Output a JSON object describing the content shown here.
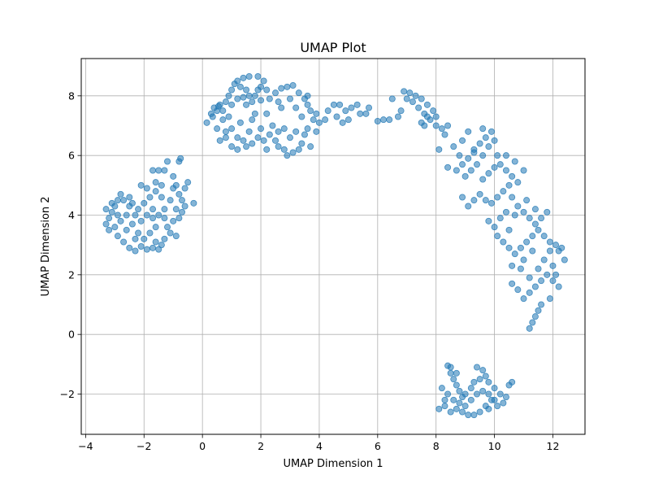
{
  "chart_data": {
    "type": "scatter",
    "title": "UMAP Plot",
    "xlabel": "UMAP Dimension 1",
    "ylabel": "UMAP Dimension 2",
    "xlim": [
      -4.15,
      13.1
    ],
    "ylim": [
      -3.35,
      9.25
    ],
    "xticks": [
      -4,
      -2,
      0,
      2,
      4,
      6,
      8,
      10,
      12
    ],
    "yticks": [
      -2,
      0,
      2,
      4,
      6,
      8
    ],
    "xtick_labels": [
      "−4",
      "−2",
      "0",
      "2",
      "4",
      "6",
      "8",
      "10",
      "12"
    ],
    "ytick_labels": [
      "−2",
      "0",
      "2",
      "4",
      "6",
      "8"
    ],
    "grid": true,
    "marker_color": "#1f77b4",
    "marker_alpha": 0.55,
    "points": [
      [
        -3.3,
        3.7
      ],
      [
        -3.2,
        3.9
      ],
      [
        -3.1,
        4.1
      ],
      [
        -3.0,
        4.3
      ],
      [
        -2.9,
        4.5
      ],
      [
        -2.8,
        4.7
      ],
      [
        -3.2,
        3.5
      ],
      [
        -3.0,
        3.6
      ],
      [
        -2.8,
        3.8
      ],
      [
        -2.6,
        4.0
      ],
      [
        -2.5,
        4.3
      ],
      [
        -2.7,
        4.5
      ],
      [
        -3.1,
        4.4
      ],
      [
        -2.9,
        3.3
      ],
      [
        -2.6,
        3.5
      ],
      [
        -2.4,
        3.7
      ],
      [
        -2.3,
        4.0
      ],
      [
        -2.5,
        4.6
      ],
      [
        -2.9,
        4.0
      ],
      [
        -3.3,
        4.2
      ],
      [
        -2.7,
        3.1
      ],
      [
        -2.5,
        2.9
      ],
      [
        -2.3,
        2.8
      ],
      [
        -2.1,
        2.95
      ],
      [
        -1.9,
        2.85
      ],
      [
        -1.7,
        2.9
      ],
      [
        -1.5,
        2.85
      ],
      [
        -1.4,
        3.0
      ],
      [
        -1.6,
        3.1
      ],
      [
        -1.3,
        3.2
      ],
      [
        -1.1,
        3.4
      ],
      [
        -0.9,
        3.3
      ],
      [
        -1.2,
        3.6
      ],
      [
        -1.0,
        3.8
      ],
      [
        -0.8,
        3.9
      ],
      [
        -0.7,
        4.1
      ],
      [
        -0.6,
        4.3
      ],
      [
        -0.7,
        4.5
      ],
      [
        -0.8,
        4.7
      ],
      [
        -0.6,
        4.9
      ],
      [
        -0.9,
        5.0
      ],
      [
        -0.5,
        5.1
      ],
      [
        -1.0,
        5.3
      ],
      [
        -1.3,
        5.5
      ],
      [
        -1.5,
        5.5
      ],
      [
        -1.7,
        5.5
      ],
      [
        -1.2,
        5.8
      ],
      [
        -0.8,
        5.8
      ],
      [
        -0.75,
        5.9
      ],
      [
        -1.4,
        5.0
      ],
      [
        -1.6,
        4.8
      ],
      [
        -1.8,
        4.6
      ],
      [
        -2.0,
        4.4
      ],
      [
        -1.7,
        4.2
      ],
      [
        -1.5,
        4.0
      ],
      [
        -1.3,
        3.9
      ],
      [
        -1.9,
        4.0
      ],
      [
        -2.1,
        3.8
      ],
      [
        -1.6,
        3.6
      ],
      [
        -1.8,
        3.4
      ],
      [
        -2.0,
        3.2
      ],
      [
        -2.2,
        3.4
      ],
      [
        -1.9,
        4.9
      ],
      [
        -2.1,
        5.0
      ],
      [
        -1.6,
        5.1
      ],
      [
        -1.1,
        4.5
      ],
      [
        -1.3,
        4.2
      ],
      [
        -0.9,
        4.2
      ],
      [
        -2.2,
        4.2
      ],
      [
        -2.4,
        4.4
      ],
      [
        -0.3,
        4.4
      ],
      [
        -1.0,
        4.9
      ],
      [
        -1.4,
        4.6
      ],
      [
        -1.7,
        3.9
      ],
      [
        -2.3,
        3.2
      ],
      [
        0.15,
        7.1
      ],
      [
        0.3,
        7.4
      ],
      [
        0.4,
        7.6
      ],
      [
        0.5,
        7.5
      ],
      [
        0.6,
        7.7
      ],
      [
        0.7,
        7.5
      ],
      [
        0.8,
        7.8
      ],
      [
        0.9,
        8.0
      ],
      [
        1.0,
        8.2
      ],
      [
        1.1,
        8.4
      ],
      [
        1.2,
        8.5
      ],
      [
        1.3,
        8.3
      ],
      [
        1.4,
        8.6
      ],
      [
        1.5,
        8.2
      ],
      [
        1.6,
        8.0
      ],
      [
        1.7,
        7.8
      ],
      [
        1.8,
        8.0
      ],
      [
        1.9,
        8.2
      ],
      [
        2.0,
        8.3
      ],
      [
        2.1,
        8.5
      ],
      [
        1.6,
        8.65
      ],
      [
        1.9,
        8.65
      ],
      [
        2.2,
        8.2
      ],
      [
        1.2,
        7.9
      ],
      [
        1.0,
        7.7
      ],
      [
        1.5,
        7.7
      ],
      [
        2.0,
        7.85
      ],
      [
        2.3,
        7.9
      ],
      [
        2.5,
        8.1
      ],
      [
        2.7,
        8.25
      ],
      [
        2.9,
        8.3
      ],
      [
        3.1,
        8.35
      ],
      [
        3.3,
        8.1
      ],
      [
        3.5,
        7.9
      ],
      [
        3.6,
        7.7
      ],
      [
        3.7,
        7.5
      ],
      [
        3.9,
        7.4
      ],
      [
        3.8,
        7.2
      ],
      [
        4.0,
        7.1
      ],
      [
        4.2,
        7.2
      ],
      [
        4.3,
        7.5
      ],
      [
        4.5,
        7.7
      ],
      [
        4.7,
        7.7
      ],
      [
        4.9,
        7.5
      ],
      [
        5.1,
        7.6
      ],
      [
        5.3,
        7.7
      ],
      [
        5.4,
        7.4
      ],
      [
        5.6,
        7.4
      ],
      [
        5.7,
        7.6
      ],
      [
        5.0,
        7.2
      ],
      [
        4.8,
        7.1
      ],
      [
        4.6,
        7.3
      ],
      [
        0.6,
        6.5
      ],
      [
        0.8,
        6.8
      ],
      [
        1.0,
        6.9
      ],
      [
        1.2,
        6.6
      ],
      [
        1.4,
        6.5
      ],
      [
        1.5,
        6.3
      ],
      [
        1.7,
        6.4
      ],
      [
        1.9,
        6.6
      ],
      [
        2.1,
        6.5
      ],
      [
        2.3,
        6.7
      ],
      [
        2.5,
        6.5
      ],
      [
        2.6,
        6.3
      ],
      [
        2.8,
        6.2
      ],
      [
        2.9,
        6.0
      ],
      [
        3.1,
        6.1
      ],
      [
        3.3,
        6.2
      ],
      [
        3.4,
        6.4
      ],
      [
        3.5,
        6.7
      ],
      [
        3.6,
        6.9
      ],
      [
        3.2,
        6.8
      ],
      [
        3.0,
        6.6
      ],
      [
        2.8,
        6.9
      ],
      [
        2.6,
        6.8
      ],
      [
        1.0,
        6.3
      ],
      [
        0.8,
        6.6
      ],
      [
        1.2,
        6.2
      ],
      [
        1.6,
        6.8
      ],
      [
        0.5,
        6.9
      ],
      [
        0.7,
        7.2
      ],
      [
        2.4,
        7.0
      ],
      [
        2.2,
        6.2
      ],
      [
        2.0,
        6.9
      ],
      [
        3.7,
        6.3
      ],
      [
        3.9,
        6.8
      ],
      [
        0.9,
        7.3
      ],
      [
        1.3,
        7.1
      ],
      [
        2.7,
        7.6
      ],
      [
        3.0,
        7.9
      ],
      [
        3.4,
        7.3
      ],
      [
        1.8,
        7.4
      ],
      [
        2.2,
        7.4
      ],
      [
        2.6,
        7.8
      ],
      [
        3.2,
        7.6
      ],
      [
        3.6,
        8.0
      ],
      [
        1.4,
        7.95
      ],
      [
        1.7,
        7.2
      ],
      [
        0.35,
        7.3
      ],
      [
        0.55,
        7.65
      ],
      [
        6.0,
        7.15
      ],
      [
        6.2,
        7.2
      ],
      [
        6.4,
        7.2
      ],
      [
        6.7,
        7.3
      ],
      [
        6.9,
        8.15
      ],
      [
        7.1,
        8.1
      ],
      [
        7.3,
        8.0
      ],
      [
        7.5,
        7.9
      ],
      [
        7.7,
        7.7
      ],
      [
        7.9,
        7.5
      ],
      [
        7.2,
        7.8
      ],
      [
        7.4,
        7.6
      ],
      [
        7.6,
        7.4
      ],
      [
        7.8,
        7.2
      ],
      [
        8.0,
        7.0
      ],
      [
        8.2,
        6.9
      ],
      [
        8.4,
        7.0
      ],
      [
        7.5,
        7.1
      ],
      [
        7.7,
        7.3
      ],
      [
        6.8,
        7.5
      ],
      [
        6.5,
        7.9
      ],
      [
        7.0,
        7.9
      ],
      [
        7.6,
        7.0
      ],
      [
        8.0,
        7.3
      ],
      [
        8.3,
        6.7
      ],
      [
        8.1,
        6.2
      ],
      [
        8.4,
        5.6
      ],
      [
        8.7,
        5.5
      ],
      [
        8.9,
        5.7
      ],
      [
        9.1,
        5.9
      ],
      [
        9.3,
        6.1
      ],
      [
        9.5,
        6.4
      ],
      [
        9.7,
        6.6
      ],
      [
        9.9,
        6.8
      ],
      [
        10.0,
        6.5
      ],
      [
        9.8,
        6.3
      ],
      [
        9.6,
        6.0
      ],
      [
        9.4,
        5.7
      ],
      [
        9.2,
        5.5
      ],
      [
        9.0,
        5.3
      ],
      [
        8.8,
        6.0
      ],
      [
        8.6,
        6.3
      ],
      [
        8.9,
        6.5
      ],
      [
        9.1,
        6.8
      ],
      [
        9.3,
        6.2
      ],
      [
        9.6,
        6.9
      ],
      [
        10.1,
        6.0
      ],
      [
        10.2,
        5.7
      ],
      [
        10.4,
        5.5
      ],
      [
        10.6,
        5.3
      ],
      [
        10.8,
        5.1
      ],
      [
        10.5,
        5.0
      ],
      [
        10.3,
        4.8
      ],
      [
        10.1,
        4.6
      ],
      [
        9.9,
        4.4
      ],
      [
        9.7,
        4.5
      ],
      [
        9.5,
        4.7
      ],
      [
        9.3,
        4.5
      ],
      [
        9.1,
        4.3
      ],
      [
        8.9,
        4.6
      ],
      [
        9.6,
        5.2
      ],
      [
        9.8,
        5.4
      ],
      [
        10.0,
        5.6
      ],
      [
        10.7,
        5.8
      ],
      [
        11.0,
        5.5
      ],
      [
        10.4,
        6.0
      ],
      [
        10.6,
        4.6
      ],
      [
        10.8,
        4.3
      ],
      [
        11.0,
        4.1
      ],
      [
        11.2,
        3.9
      ],
      [
        11.4,
        3.7
      ],
      [
        11.6,
        3.9
      ],
      [
        11.8,
        4.1
      ],
      [
        11.5,
        3.5
      ],
      [
        11.3,
        3.3
      ],
      [
        11.1,
        3.1
      ],
      [
        10.9,
        2.9
      ],
      [
        10.7,
        2.7
      ],
      [
        10.5,
        2.9
      ],
      [
        10.3,
        3.1
      ],
      [
        10.1,
        3.3
      ],
      [
        10.0,
        3.6
      ],
      [
        10.2,
        3.9
      ],
      [
        10.4,
        4.1
      ],
      [
        11.7,
        3.3
      ],
      [
        11.9,
        3.1
      ],
      [
        12.1,
        3.0
      ],
      [
        12.2,
        2.8
      ],
      [
        12.4,
        2.5
      ],
      [
        12.0,
        2.3
      ],
      [
        11.8,
        2.0
      ],
      [
        11.6,
        1.8
      ],
      [
        11.4,
        1.6
      ],
      [
        11.2,
        1.4
      ],
      [
        11.0,
        1.2
      ],
      [
        10.8,
        1.5
      ],
      [
        10.6,
        1.7
      ],
      [
        11.2,
        1.9
      ],
      [
        11.5,
        2.2
      ],
      [
        11.7,
        2.5
      ],
      [
        12.0,
        1.8
      ],
      [
        12.2,
        1.6
      ],
      [
        11.9,
        1.2
      ],
      [
        11.6,
        1.0
      ],
      [
        11.5,
        0.8
      ],
      [
        11.4,
        0.6
      ],
      [
        11.3,
        0.4
      ],
      [
        11.2,
        0.2
      ],
      [
        11.0,
        2.5
      ],
      [
        11.3,
        2.8
      ],
      [
        10.9,
        2.2
      ],
      [
        10.6,
        2.3
      ],
      [
        12.3,
        2.9
      ],
      [
        11.1,
        4.5
      ],
      [
        10.5,
        3.5
      ],
      [
        9.8,
        3.8
      ],
      [
        10.7,
        4.0
      ],
      [
        11.4,
        4.2
      ],
      [
        11.9,
        2.8
      ],
      [
        12.1,
        2.0
      ],
      [
        8.4,
        -1.05
      ],
      [
        8.5,
        -1.3
      ],
      [
        8.6,
        -1.5
      ],
      [
        8.7,
        -1.7
      ],
      [
        8.8,
        -1.9
      ],
      [
        8.9,
        -2.1
      ],
      [
        9.0,
        -2.0
      ],
      [
        9.2,
        -1.8
      ],
      [
        9.3,
        -1.6
      ],
      [
        9.5,
        -1.5
      ],
      [
        9.6,
        -1.2
      ],
      [
        9.7,
        -1.4
      ],
      [
        9.8,
        -1.6
      ],
      [
        10.0,
        -1.8
      ],
      [
        10.2,
        -2.0
      ],
      [
        10.4,
        -2.1
      ],
      [
        10.5,
        -1.7
      ],
      [
        10.6,
        -1.6
      ],
      [
        10.3,
        -2.3
      ],
      [
        10.1,
        -2.4
      ],
      [
        9.9,
        -2.2
      ],
      [
        9.7,
        -2.4
      ],
      [
        9.5,
        -2.6
      ],
      [
        9.3,
        -2.7
      ],
      [
        9.1,
        -2.7
      ],
      [
        8.9,
        -2.6
      ],
      [
        8.7,
        -2.5
      ],
      [
        8.5,
        -2.6
      ],
      [
        8.3,
        -2.4
      ],
      [
        8.1,
        -2.5
      ],
      [
        8.2,
        -1.8
      ],
      [
        8.4,
        -2.0
      ],
      [
        8.6,
        -2.2
      ],
      [
        8.8,
        -2.3
      ],
      [
        9.0,
        -2.4
      ],
      [
        9.2,
        -2.2
      ],
      [
        9.4,
        -2.0
      ],
      [
        9.6,
        -1.9
      ],
      [
        9.8,
        -2.0
      ],
      [
        10.0,
        -2.2
      ],
      [
        8.5,
        -1.1
      ],
      [
        8.7,
        -1.3
      ],
      [
        9.4,
        -1.1
      ],
      [
        9.8,
        -2.5
      ],
      [
        8.3,
        -2.2
      ]
    ]
  }
}
